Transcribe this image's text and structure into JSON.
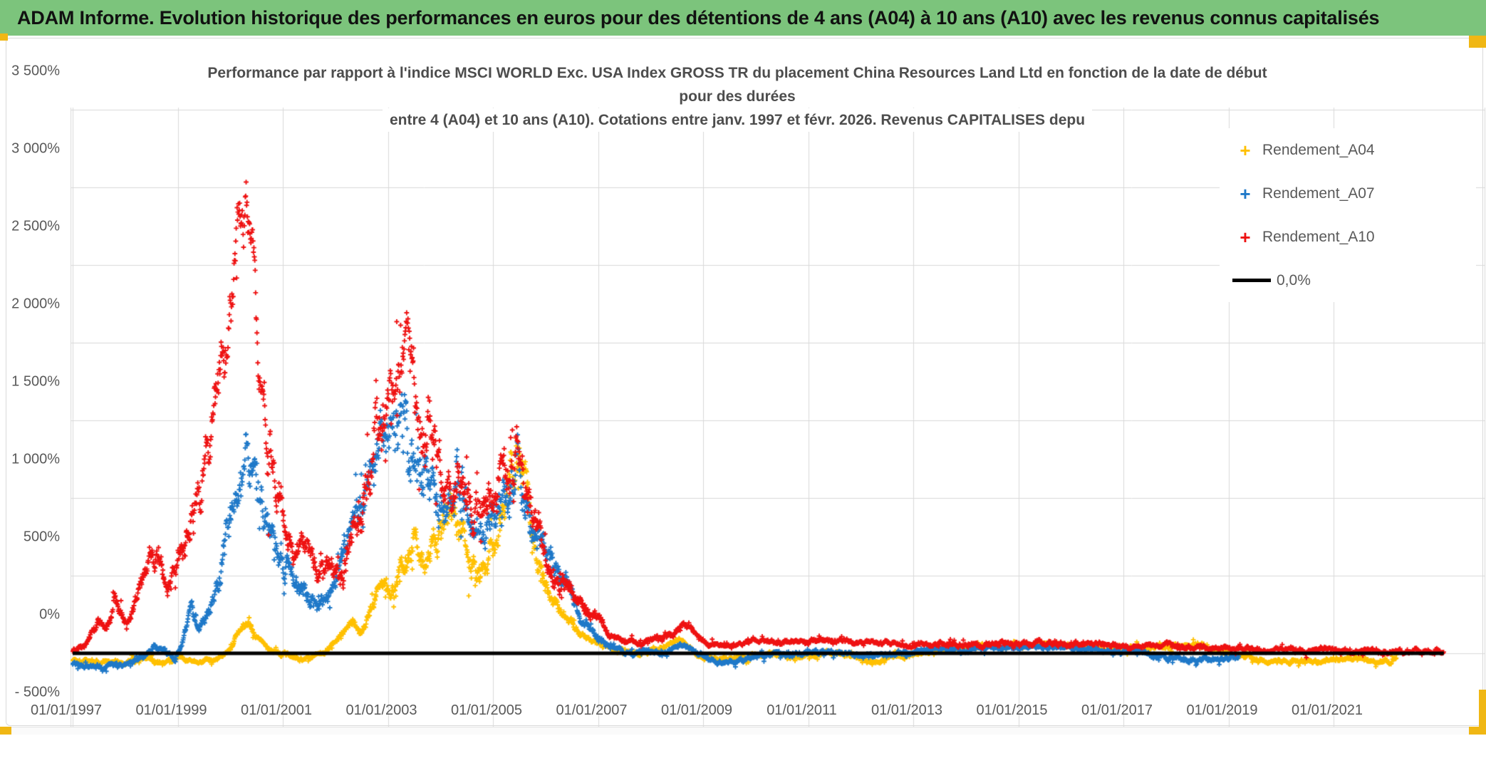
{
  "header": {
    "title": "ADAM Informe. Evolution historique des performances en euros pour des détentions de 4 ans (A04) à 10 ans (A10) avec les revenus connus capitalisés"
  },
  "colors": {
    "banner_green": "#7cc47c",
    "accent_amber": "#f0b714",
    "grid": "#d9d9d9",
    "axis_text": "#595959",
    "title_text": "#4d4d4d",
    "series_a04": "#ffc000",
    "series_a07": "#1e78c8",
    "series_a10": "#ee1111",
    "zero_line": "#000000"
  },
  "icons": {
    "plus_marker": "+"
  },
  "chart_data": {
    "type": "scatter",
    "title_lines": [
      "Performance par rapport à l'indice MSCI WORLD Exc. USA Index GROSS TR  du placement China Resources Land Ltd en fonction de la date de début",
      "pour des durées",
      "entre 4 (A04) et 10 ans (A10). Cotations entre janv. 1997 et févr. 2026. Revenus CAPITALISES depu"
    ],
    "xlabel": "",
    "ylabel": "",
    "ylim": [
      -500,
      3500
    ],
    "y_tick_step": 500,
    "y_ticks": [
      {
        "label": "3 500%",
        "value": 3500
      },
      {
        "label": "3 000%",
        "value": 3000
      },
      {
        "label": "2 500%",
        "value": 2500
      },
      {
        "label": "2 000%",
        "value": 2000
      },
      {
        "label": "1 500%",
        "value": 1500
      },
      {
        "label": "1 000%",
        "value": 1000
      },
      {
        "label": "500%",
        "value": 500
      },
      {
        "label": "0%",
        "value": 0
      },
      {
        "label": "- 500%",
        "value": -500
      }
    ],
    "x_ticks": [
      {
        "label": "01/01/1997",
        "year": 1997
      },
      {
        "label": "01/01/1999",
        "year": 1999
      },
      {
        "label": "01/01/2001",
        "year": 2001
      },
      {
        "label": "01/01/2003",
        "year": 2003
      },
      {
        "label": "01/01/2005",
        "year": 2005
      },
      {
        "label": "01/01/2007",
        "year": 2007
      },
      {
        "label": "01/01/2009",
        "year": 2009
      },
      {
        "label": "01/01/2011",
        "year": 2011
      },
      {
        "label": "01/01/2013",
        "year": 2013
      },
      {
        "label": "01/01/2015",
        "year": 2015
      },
      {
        "label": "01/01/2017",
        "year": 2017
      },
      {
        "label": "01/01/2019",
        "year": 2019
      },
      {
        "label": "01/01/2021",
        "year": 2021
      }
    ],
    "grid": true,
    "legend_position": "top-right",
    "marker": "plus",
    "series": [
      {
        "name": "Rendement_A04",
        "color": "#ffc000",
        "start_year": 1997.0,
        "end_year": 2022.2,
        "trend": [
          [
            1997.0,
            -40
          ],
          [
            1997.5,
            -55
          ],
          [
            1998.0,
            -50
          ],
          [
            1998.5,
            -45
          ],
          [
            1998.8,
            -60
          ],
          [
            1999.1,
            -35
          ],
          [
            1999.4,
            -60
          ],
          [
            1999.7,
            -40
          ],
          [
            2000.0,
            30
          ],
          [
            2000.2,
            170
          ],
          [
            2000.35,
            200
          ],
          [
            2000.5,
            110
          ],
          [
            2000.8,
            20
          ],
          [
            2001.0,
            0
          ],
          [
            2001.4,
            -45
          ],
          [
            2001.8,
            15
          ],
          [
            2002.1,
            120
          ],
          [
            2002.35,
            210
          ],
          [
            2002.5,
            140
          ],
          [
            2002.85,
            430
          ],
          [
            2003.05,
            350
          ],
          [
            2003.4,
            680
          ],
          [
            2003.55,
            840
          ],
          [
            2003.7,
            620
          ],
          [
            2003.9,
            790
          ],
          [
            2004.15,
            900
          ],
          [
            2004.3,
            950
          ],
          [
            2004.5,
            700
          ],
          [
            2004.7,
            520
          ],
          [
            2004.9,
            610
          ],
          [
            2005.1,
            800
          ],
          [
            2005.35,
            1080
          ],
          [
            2005.5,
            1440
          ],
          [
            2005.62,
            1050
          ],
          [
            2005.8,
            760
          ],
          [
            2006.05,
            430
          ],
          [
            2006.35,
            260
          ],
          [
            2006.65,
            130
          ],
          [
            2007.0,
            60
          ],
          [
            2007.4,
            20
          ],
          [
            2007.8,
            0
          ],
          [
            2008.2,
            35
          ],
          [
            2008.55,
            95
          ],
          [
            2008.9,
            -10
          ],
          [
            2009.2,
            -35
          ],
          [
            2009.5,
            -45
          ],
          [
            2009.9,
            -20
          ],
          [
            2010.3,
            0
          ],
          [
            2010.7,
            -20
          ],
          [
            2011.1,
            -10
          ],
          [
            2011.5,
            10
          ],
          [
            2011.9,
            -25
          ],
          [
            2012.3,
            -50
          ],
          [
            2012.7,
            -25
          ],
          [
            2013.1,
            5
          ],
          [
            2013.5,
            20
          ],
          [
            2013.9,
            30
          ],
          [
            2014.3,
            50
          ],
          [
            2014.7,
            40
          ],
          [
            2015.1,
            60
          ],
          [
            2015.5,
            50
          ],
          [
            2015.9,
            60
          ],
          [
            2016.3,
            40
          ],
          [
            2016.7,
            20
          ],
          [
            2017.1,
            40
          ],
          [
            2017.5,
            30
          ],
          [
            2017.9,
            40
          ],
          [
            2018.3,
            60
          ],
          [
            2018.7,
            25
          ],
          [
            2019.1,
            -5
          ],
          [
            2019.5,
            -40
          ],
          [
            2019.9,
            -60
          ],
          [
            2020.3,
            -45
          ],
          [
            2020.7,
            -55
          ],
          [
            2021.1,
            -40
          ],
          [
            2021.5,
            -35
          ],
          [
            2021.9,
            -50
          ],
          [
            2022.2,
            -40
          ]
        ]
      },
      {
        "name": "Rendement_A07",
        "color": "#1e78c8",
        "start_year": 1997.0,
        "end_year": 2019.2,
        "trend": [
          [
            1997.0,
            -70
          ],
          [
            1997.4,
            -85
          ],
          [
            1997.8,
            -75
          ],
          [
            1998.1,
            -60
          ],
          [
            1998.35,
            -25
          ],
          [
            1998.55,
            55
          ],
          [
            1998.75,
            15
          ],
          [
            1998.95,
            -40
          ],
          [
            1999.1,
            90
          ],
          [
            1999.25,
            280
          ],
          [
            1999.4,
            160
          ],
          [
            1999.6,
            260
          ],
          [
            1999.8,
            520
          ],
          [
            2000.0,
            820
          ],
          [
            2000.15,
            1080
          ],
          [
            2000.3,
            1360
          ],
          [
            2000.42,
            1220
          ],
          [
            2000.55,
            1030
          ],
          [
            2000.7,
            830
          ],
          [
            2000.9,
            700
          ],
          [
            2001.1,
            520
          ],
          [
            2001.3,
            470
          ],
          [
            2001.5,
            360
          ],
          [
            2001.7,
            290
          ],
          [
            2001.9,
            410
          ],
          [
            2002.1,
            600
          ],
          [
            2002.3,
            800
          ],
          [
            2002.5,
            1010
          ],
          [
            2002.7,
            1240
          ],
          [
            2002.9,
            1300
          ],
          [
            2003.1,
            1400
          ],
          [
            2003.3,
            1430
          ],
          [
            2003.5,
            1210
          ],
          [
            2003.7,
            1240
          ],
          [
            2003.9,
            1010
          ],
          [
            2004.1,
            950
          ],
          [
            2004.3,
            1140
          ],
          [
            2004.5,
            960
          ],
          [
            2004.7,
            760
          ],
          [
            2004.9,
            850
          ],
          [
            2005.1,
            950
          ],
          [
            2005.3,
            1050
          ],
          [
            2005.5,
            1190
          ],
          [
            2005.7,
            860
          ],
          [
            2005.9,
            660
          ],
          [
            2006.05,
            670
          ],
          [
            2006.25,
            540
          ],
          [
            2006.45,
            440
          ],
          [
            2006.65,
            250
          ],
          [
            2006.85,
            150
          ],
          [
            2007.05,
            80
          ],
          [
            2007.35,
            35
          ],
          [
            2007.65,
            0
          ],
          [
            2007.95,
            20
          ],
          [
            2008.25,
            0
          ],
          [
            2008.55,
            60
          ],
          [
            2008.85,
            15
          ],
          [
            2009.15,
            -45
          ],
          [
            2009.45,
            -60
          ],
          [
            2009.75,
            -40
          ],
          [
            2010.05,
            -20
          ],
          [
            2010.45,
            0
          ],
          [
            2010.85,
            -10
          ],
          [
            2011.25,
            10
          ],
          [
            2011.65,
            0
          ],
          [
            2012.05,
            -20
          ],
          [
            2012.45,
            -10
          ],
          [
            2012.85,
            0
          ],
          [
            2013.25,
            20
          ],
          [
            2013.65,
            30
          ],
          [
            2014.05,
            20
          ],
          [
            2014.45,
            40
          ],
          [
            2014.85,
            30
          ],
          [
            2015.25,
            45
          ],
          [
            2015.65,
            30
          ],
          [
            2016.05,
            40
          ],
          [
            2016.45,
            20
          ],
          [
            2016.85,
            10
          ],
          [
            2017.25,
            20
          ],
          [
            2017.65,
            -20
          ],
          [
            2018.05,
            -35
          ],
          [
            2018.45,
            -45
          ],
          [
            2018.85,
            -35
          ],
          [
            2019.2,
            -30
          ]
        ]
      },
      {
        "name": "Rendement_A10",
        "color": "#ee1111",
        "start_year": 1997.0,
        "end_year": 2023.1,
        "trend": [
          [
            1997.0,
            10
          ],
          [
            1997.25,
            60
          ],
          [
            1997.5,
            220
          ],
          [
            1997.65,
            150
          ],
          [
            1997.8,
            350
          ],
          [
            1998.0,
            210
          ],
          [
            1998.2,
            330
          ],
          [
            1998.5,
            620
          ],
          [
            1998.65,
            680
          ],
          [
            1998.8,
            420
          ],
          [
            1999.0,
            560
          ],
          [
            1999.15,
            700
          ],
          [
            1999.3,
            900
          ],
          [
            1999.5,
            1200
          ],
          [
            1999.7,
            1550
          ],
          [
            1999.85,
            1950
          ],
          [
            2000.0,
            2250
          ],
          [
            2000.1,
            2600
          ],
          [
            2000.2,
            2880
          ],
          [
            2000.32,
            2750
          ],
          [
            2000.45,
            2450
          ],
          [
            2000.55,
            1950
          ],
          [
            2000.65,
            1600
          ],
          [
            2000.8,
            1300
          ],
          [
            2000.95,
            1000
          ],
          [
            2001.1,
            750
          ],
          [
            2001.3,
            640
          ],
          [
            2001.5,
            600
          ],
          [
            2001.7,
            560
          ],
          [
            2001.85,
            640
          ],
          [
            2002.0,
            520
          ],
          [
            2002.15,
            460
          ],
          [
            2002.3,
            780
          ],
          [
            2002.5,
            1000
          ],
          [
            2002.7,
            1300
          ],
          [
            2002.9,
            1500
          ],
          [
            2003.1,
            1620
          ],
          [
            2003.25,
            1950
          ],
          [
            2003.35,
            2120
          ],
          [
            2003.5,
            1680
          ],
          [
            2003.65,
            1520
          ],
          [
            2003.8,
            1420
          ],
          [
            2003.95,
            1160
          ],
          [
            2004.1,
            1000
          ],
          [
            2004.3,
            1200
          ],
          [
            2004.5,
            1060
          ],
          [
            2004.65,
            860
          ],
          [
            2004.85,
            950
          ],
          [
            2005.05,
            1000
          ],
          [
            2005.25,
            1090
          ],
          [
            2005.45,
            1180
          ],
          [
            2005.6,
            1000
          ],
          [
            2005.8,
            800
          ],
          [
            2006.0,
            560
          ],
          [
            2006.2,
            460
          ],
          [
            2006.45,
            400
          ],
          [
            2006.7,
            310
          ],
          [
            2006.95,
            240
          ],
          [
            2007.2,
            130
          ],
          [
            2007.5,
            85
          ],
          [
            2007.8,
            70
          ],
          [
            2008.1,
            95
          ],
          [
            2008.4,
            125
          ],
          [
            2008.6,
            185
          ],
          [
            2008.8,
            140
          ],
          [
            2009.1,
            60
          ],
          [
            2009.4,
            45
          ],
          [
            2009.7,
            60
          ],
          [
            2010.0,
            90
          ],
          [
            2010.4,
            70
          ],
          [
            2010.8,
            65
          ],
          [
            2011.2,
            80
          ],
          [
            2011.6,
            85
          ],
          [
            2012.0,
            70
          ],
          [
            2012.5,
            75
          ],
          [
            2013.0,
            50
          ],
          [
            2013.5,
            65
          ],
          [
            2014.0,
            50
          ],
          [
            2014.5,
            60
          ],
          [
            2015.0,
            55
          ],
          [
            2015.5,
            65
          ],
          [
            2016.0,
            55
          ],
          [
            2016.5,
            65
          ],
          [
            2017.0,
            45
          ],
          [
            2017.5,
            55
          ],
          [
            2018.0,
            45
          ],
          [
            2018.5,
            38
          ],
          [
            2019.0,
            33
          ],
          [
            2019.5,
            28
          ],
          [
            2020.0,
            24
          ],
          [
            2020.5,
            20
          ],
          [
            2021.0,
            18
          ],
          [
            2021.5,
            15
          ],
          [
            2022.0,
            13
          ],
          [
            2022.6,
            11
          ],
          [
            2023.1,
            10
          ]
        ]
      },
      {
        "name": "0,0%",
        "type": "line",
        "color": "#000000",
        "y": 0,
        "x_range_years": [
          1997.0,
          2023.1
        ]
      }
    ]
  }
}
